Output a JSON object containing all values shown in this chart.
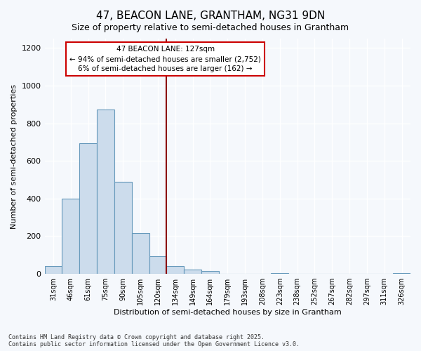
{
  "title": "47, BEACON LANE, GRANTHAM, NG31 9DN",
  "subtitle": "Size of property relative to semi-detached houses in Grantham",
  "xlabel": "Distribution of semi-detached houses by size in Grantham",
  "ylabel": "Number of semi-detached properties",
  "bar_labels": [
    "31sqm",
    "46sqm",
    "61sqm",
    "75sqm",
    "90sqm",
    "105sqm",
    "120sqm",
    "134sqm",
    "149sqm",
    "164sqm",
    "179sqm",
    "193sqm",
    "208sqm",
    "223sqm",
    "238sqm",
    "252sqm",
    "267sqm",
    "282sqm",
    "297sqm",
    "311sqm",
    "326sqm"
  ],
  "bar_values": [
    40,
    400,
    695,
    875,
    490,
    215,
    95,
    40,
    22,
    15,
    0,
    0,
    0,
    5,
    0,
    0,
    0,
    0,
    0,
    0,
    5
  ],
  "bar_color": "#ccdcec",
  "bar_edge_color": "#6699bb",
  "vline_x_label": "134sqm",
  "vline_color": "#8b0000",
  "annotation_title": "47 BEACON LANE: 127sqm",
  "annotation_line1": "← 94% of semi-detached houses are smaller (2,752)",
  "annotation_line2": "6% of semi-detached houses are larger (162) →",
  "annotation_box_color": "#ffffff",
  "annotation_box_edge": "#cc0000",
  "ylim": [
    0,
    1250
  ],
  "yticks": [
    0,
    200,
    400,
    600,
    800,
    1000,
    1200
  ],
  "footnote1": "Contains HM Land Registry data © Crown copyright and database right 2025.",
  "footnote2": "Contains public sector information licensed under the Open Government Licence v3.0.",
  "bg_color": "#f5f8fc",
  "plot_bg_color": "#f5f8fc",
  "grid_color": "#ffffff",
  "title_fontsize": 11,
  "subtitle_fontsize": 9
}
